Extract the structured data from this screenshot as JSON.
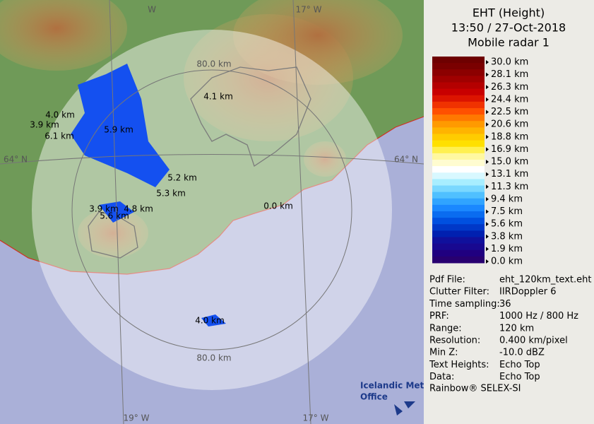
{
  "map": {
    "grid_labels": [
      "W",
      "17° W",
      "64° N",
      "64° N",
      "19° W",
      "17° W"
    ],
    "range_labels": [
      "80.0 km",
      "80.0 km"
    ],
    "echo_labels": [
      "4.1 km",
      "4.0 km",
      "3.9 km",
      "6.1 km",
      "5.9 km",
      "5.2 km",
      "5.3 km",
      "0.0 km",
      "3.9 km",
      "4.8 km",
      "5.6 km",
      "4.0 km"
    ],
    "logo": [
      "Icelandic Met",
      "Office"
    ]
  },
  "panel": {
    "title": [
      "EHT (Height)",
      "13:50 / 27-Oct-2018",
      "Mobile radar 1"
    ],
    "scale_labels": [
      "30.0 km",
      "28.1 km",
      "26.3 km",
      "24.4 km",
      "22.5 km",
      "20.6 km",
      "18.8 km",
      "16.9 km",
      "15.0 km",
      "13.1 km",
      "11.3 km",
      "9.4 km",
      "7.5 km",
      "5.6 km",
      "3.8 km",
      "1.9 km",
      "0.0 km"
    ],
    "scale_colors": [
      "#6e0000",
      "#7a0000",
      "#8c0000",
      "#a00000",
      "#b40000",
      "#c80000",
      "#dc1400",
      "#f03200",
      "#ff5000",
      "#ff7800",
      "#ff9a00",
      "#ffb400",
      "#ffcc00",
      "#ffe000",
      "#fff050",
      "#fff8a0",
      "#fffcd0",
      "#ffffff",
      "#d8f8ff",
      "#a8eeff",
      "#7ad8ff",
      "#50c0ff",
      "#30a4ff",
      "#1a88ff",
      "#0a6cf0",
      "#0050e0",
      "#0038c8",
      "#0020b0",
      "#10109c",
      "#180890",
      "#200080",
      "#280070"
    ],
    "info": [
      [
        "Pdf File:",
        "eht_120km_text.eht"
      ],
      [
        "Clutter Filter:",
        "IIRDoppler 6"
      ],
      [
        "Time sampling:",
        "36"
      ],
      [
        "PRF:",
        "1000 Hz / 800 Hz"
      ],
      [
        "Range:",
        "120 km"
      ],
      [
        "Resolution:",
        "0.400 km/pixel"
      ],
      [
        "Min Z:",
        "-10.0 dBZ"
      ],
      [
        "Text Heights:",
        "Echo Top"
      ],
      [
        "Data:",
        "Echo Top"
      ]
    ],
    "footer": "Rainbow® SELEX-SI"
  }
}
